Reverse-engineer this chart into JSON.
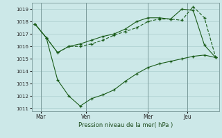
{
  "xlabel": "Pression niveau de la mer( hPa )",
  "bg_color": "#cce8e8",
  "line_color": "#1a5c1a",
  "grid_color": "#aacece",
  "vline_color": "#7a9a9a",
  "ylim": [
    1010.8,
    1019.5
  ],
  "yticks": [
    1011,
    1012,
    1013,
    1014,
    1015,
    1016,
    1017,
    1018,
    1019
  ],
  "xlim": [
    -0.3,
    16.3
  ],
  "day_labels": [
    "Mar",
    "Ven",
    "Mer",
    "Jeu"
  ],
  "day_positions": [
    0.5,
    4.5,
    10.0,
    13.5
  ],
  "vline_positions": [
    0.5,
    4.5,
    10.0,
    13.5
  ],
  "line1_x": [
    0,
    1,
    2,
    3,
    4,
    5,
    6,
    7,
    8,
    9,
    10,
    11,
    12,
    13,
    14,
    15,
    16
  ],
  "line1_y": [
    1017.8,
    1016.7,
    1015.5,
    1016.0,
    1016.0,
    1016.2,
    1016.5,
    1016.9,
    1017.2,
    1017.5,
    1018.0,
    1018.2,
    1018.2,
    1018.1,
    1019.2,
    1018.3,
    1015.1
  ],
  "line2_x": [
    0,
    1,
    2,
    3,
    4,
    5,
    6,
    7,
    8,
    9,
    10,
    11,
    12,
    13,
    14,
    15,
    16
  ],
  "line2_y": [
    1017.8,
    1016.7,
    1015.5,
    1016.0,
    1016.2,
    1016.5,
    1016.8,
    1017.0,
    1017.4,
    1018.0,
    1018.3,
    1018.3,
    1018.2,
    1019.0,
    1018.9,
    1016.1,
    1015.1
  ],
  "line3_x": [
    0,
    1,
    2,
    3,
    4,
    5,
    6,
    7,
    8,
    9,
    10,
    11,
    12,
    13,
    14,
    15,
    16
  ],
  "line3_y": [
    1017.8,
    1016.7,
    1013.3,
    1012.0,
    1011.2,
    1011.8,
    1012.1,
    1012.5,
    1013.2,
    1013.8,
    1014.3,
    1014.6,
    1014.8,
    1015.0,
    1015.2,
    1015.3,
    1015.1
  ]
}
